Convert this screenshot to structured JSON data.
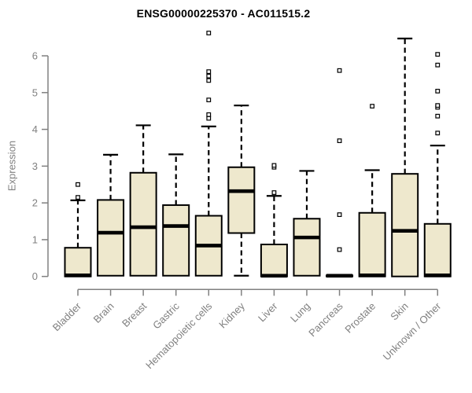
{
  "chart_data": {
    "type": "boxplot",
    "title": "ENSG00000225370 - AC011515.2",
    "ylabel": "Expression",
    "xlabel": "",
    "ylim": [
      0,
      6.7
    ],
    "yticks": [
      0,
      1,
      2,
      3,
      4,
      5,
      6
    ],
    "grid": false,
    "legend": null,
    "categories": [
      "Bladder",
      "Brain",
      "Breast",
      "Gastric",
      "Hematopoietic cells",
      "Kidney",
      "Liver",
      "Lung",
      "Pancreas",
      "Prostate",
      "Skin",
      "Unknown / Other"
    ],
    "boxes": [
      {
        "category": "Bladder",
        "low": 0,
        "q1": 0,
        "median": 0.03,
        "q3": 0.78,
        "high": 2.07,
        "outliers": [
          2.15,
          2.5
        ]
      },
      {
        "category": "Brain",
        "low": 0,
        "q1": 0.02,
        "median": 1.19,
        "q3": 2.08,
        "high": 3.31,
        "outliers": []
      },
      {
        "category": "Breast",
        "low": 0,
        "q1": 0.02,
        "median": 1.34,
        "q3": 2.82,
        "high": 4.11,
        "outliers": []
      },
      {
        "category": "Gastric",
        "low": 0,
        "q1": 0.02,
        "median": 1.37,
        "q3": 1.94,
        "high": 3.32,
        "outliers": []
      },
      {
        "category": "Hematopoietic cells",
        "low": 0,
        "q1": 0.02,
        "median": 0.84,
        "q3": 1.65,
        "high": 4.08,
        "outliers": [
          4.3,
          4.4,
          4.8,
          5.33,
          5.45,
          5.57,
          6.62
        ]
      },
      {
        "category": "Kidney",
        "low": 0.02,
        "q1": 1.18,
        "median": 2.32,
        "q3": 2.97,
        "high": 4.65,
        "outliers": []
      },
      {
        "category": "Liver",
        "low": 0,
        "q1": 0,
        "median": 0.02,
        "q3": 0.87,
        "high": 2.19,
        "outliers": [
          2.28,
          2.97,
          3.02
        ]
      },
      {
        "category": "Lung",
        "low": 0,
        "q1": 0.02,
        "median": 1.06,
        "q3": 1.57,
        "high": 2.87,
        "outliers": []
      },
      {
        "category": "Pancreas",
        "low": 0,
        "q1": 0,
        "median": 0.02,
        "q3": 0.03,
        "high": 0.03,
        "outliers": [
          0.73,
          1.68,
          3.69,
          5.6
        ]
      },
      {
        "category": "Prostate",
        "low": 0,
        "q1": 0,
        "median": 0.03,
        "q3": 1.73,
        "high": 2.89,
        "outliers": [
          4.63
        ]
      },
      {
        "category": "Skin",
        "low": 0,
        "q1": 0,
        "median": 1.24,
        "q3": 2.79,
        "high": 6.47,
        "outliers": []
      },
      {
        "category": "Unknown / Other",
        "low": 0,
        "q1": 0,
        "median": 0.03,
        "q3": 1.43,
        "high": 3.56,
        "outliers": [
          3.9,
          4.36,
          4.6,
          4.65,
          5.04,
          5.75,
          6.04
        ]
      }
    ],
    "colors": {
      "box_fill": "#EEE8CD",
      "box_border": "#000000",
      "median": "#000000",
      "whisker": "#000000",
      "outlier_stroke": "#000000",
      "outlier_fill": "#FFFFFF",
      "axis": "#808080",
      "label_text": "#808080",
      "title_text": "#000000",
      "background": "#FFFFFF"
    }
  }
}
